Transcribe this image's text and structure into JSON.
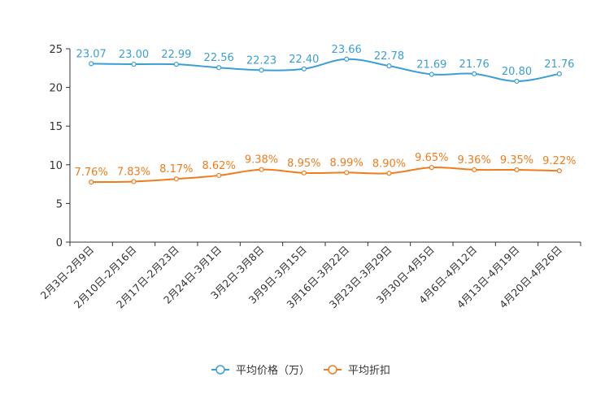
{
  "chart_data": {
    "type": "line",
    "title": "",
    "xlabel": "",
    "ylabel": "",
    "ylim": [
      0,
      25
    ],
    "yticks": [
      0,
      5,
      10,
      15,
      20,
      25
    ],
    "grid": false,
    "legend_position": "bottom-center",
    "categories": [
      "2月3日-2月9日",
      "2月10日-2月16日",
      "2月17日-2月23日",
      "2月24日-3月1日",
      "3月2日-3月8日",
      "3月9日-3月15日",
      "3月16日-3月22日",
      "3月23日-3月29日",
      "3月30日-4月5日",
      "4月6日-4月12日",
      "4月13日-4月19日",
      "4月20日-4月26日"
    ],
    "series": [
      {
        "name": "平均价格（万）",
        "color": "#3a9fd5",
        "values": [
          23.07,
          23.0,
          22.99,
          22.56,
          22.23,
          22.4,
          23.66,
          22.78,
          21.69,
          21.76,
          20.8,
          21.76
        ],
        "labels": [
          "23.07",
          "23.00",
          "22.99",
          "22.56",
          "22.23",
          "22.40",
          "23.66",
          "22.78",
          "21.69",
          "21.76",
          "20.80",
          "21.76"
        ]
      },
      {
        "name": "平均折扣",
        "color": "#f07c1c",
        "values": [
          7.76,
          7.83,
          8.17,
          8.62,
          9.38,
          8.95,
          8.99,
          8.9,
          9.65,
          9.36,
          9.35,
          9.22
        ],
        "labels": [
          "7.76%",
          "7.83%",
          "8.17%",
          "8.62%",
          "9.38%",
          "8.95%",
          "8.99%",
          "8.90%",
          "9.65%",
          "9.36%",
          "9.35%",
          "9.22%"
        ]
      }
    ]
  }
}
